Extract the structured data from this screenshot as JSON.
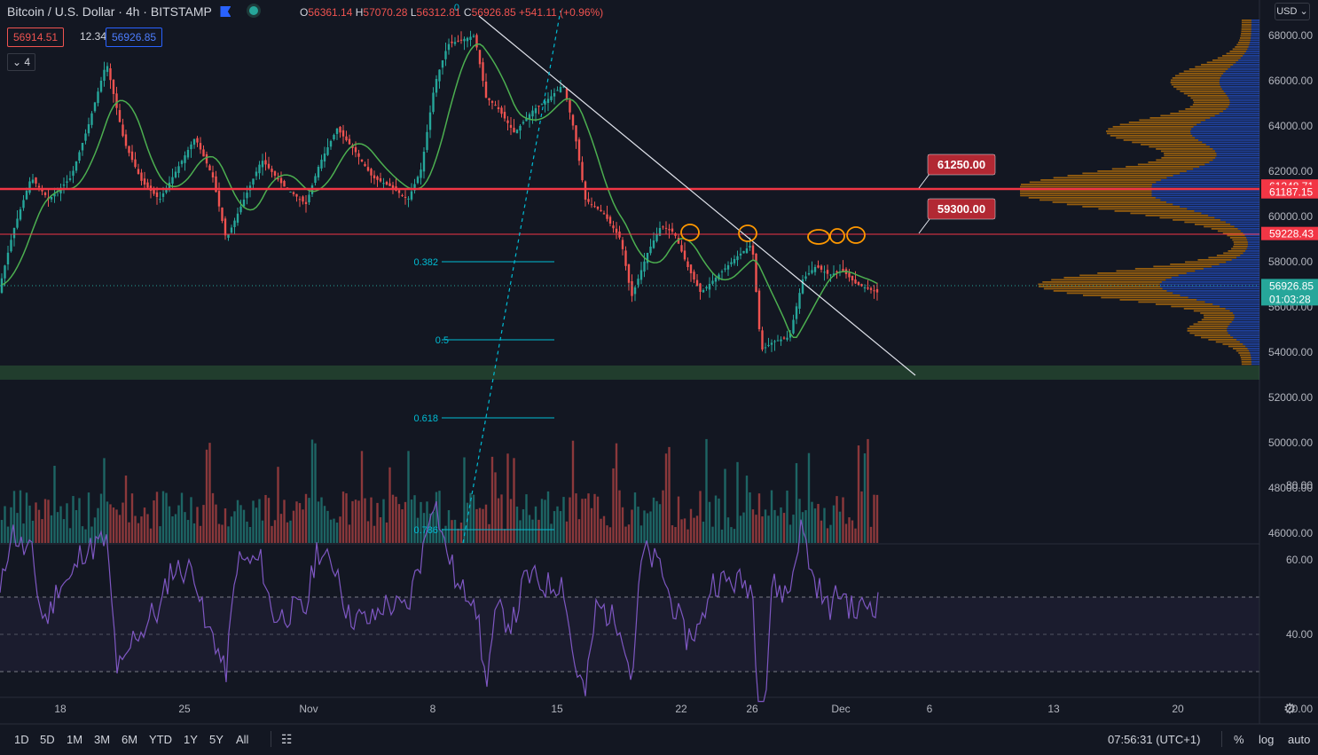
{
  "header": {
    "symbol": "Bitcoin / U.S. Dollar",
    "interval": "4h",
    "exchange": "BITSTAMP",
    "ohlc": [
      {
        "k": "O",
        "v": "56361.14"
      },
      {
        "k": "H",
        "v": "57070.28"
      },
      {
        "k": "L",
        "v": "56312.81"
      },
      {
        "k": "C",
        "v": "56926.85"
      }
    ],
    "change": "+541.11 (+0.96%)"
  },
  "quote": {
    "bid": "56914.51",
    "spread": "12.34",
    "ask": "56926.85"
  },
  "indicator_toggle": "4",
  "currency": "USD",
  "colors": {
    "bg": "#131722",
    "up": "#26a69a",
    "down": "#ef5350",
    "ma": "#4caf50",
    "rsi": "#7e57c2",
    "fib": "#00bcd4",
    "accent": "#2962ff"
  },
  "price_axis": {
    "ticks": [
      "68000.00",
      "66000.00",
      "64000.00",
      "62000.00",
      "60000.00",
      "58000.00",
      "56000.00",
      "54000.00",
      "52000.00",
      "50000.00",
      "48000.00",
      "46000.00"
    ],
    "labels": [
      {
        "value": 61248.71,
        "text": "61248.71",
        "color": "#f23645"
      },
      {
        "value": 61187.15,
        "text": "61187.15",
        "color": "#f23645"
      },
      {
        "value": 59228.43,
        "text": "59228.43",
        "color": "#f23645"
      },
      {
        "value": 56926.85,
        "text": "56926.85",
        "color": "#26a69a"
      }
    ],
    "countdown": "01:03:28"
  },
  "rsi_axis": {
    "ticks": [
      "80.00",
      "60.00",
      "40.00",
      "20.00"
    ]
  },
  "time_axis": {
    "ticks": [
      "18",
      "25",
      "Nov",
      "8",
      "15",
      "22",
      "26",
      "Dec",
      "6",
      "13",
      "20"
    ]
  },
  "fib_levels": [
    {
      "level": 0,
      "label": "0"
    },
    {
      "level": 0.382,
      "label": "0.382"
    },
    {
      "level": 0.5,
      "label": "0.5"
    },
    {
      "level": 0.618,
      "label": "0.618"
    },
    {
      "level": 0.786,
      "label": "0.786"
    }
  ],
  "annotations": [
    {
      "text": "61250.00",
      "price": 61250
    },
    {
      "text": "59300.00",
      "price": 59300
    }
  ],
  "bottom_bar": {
    "ranges": [
      "1D",
      "5D",
      "1M",
      "3M",
      "6M",
      "YTD",
      "1Y",
      "5Y",
      "All"
    ],
    "clock": "07:56:31 (UTC+1)",
    "options": [
      "%",
      "log",
      "auto"
    ]
  }
}
